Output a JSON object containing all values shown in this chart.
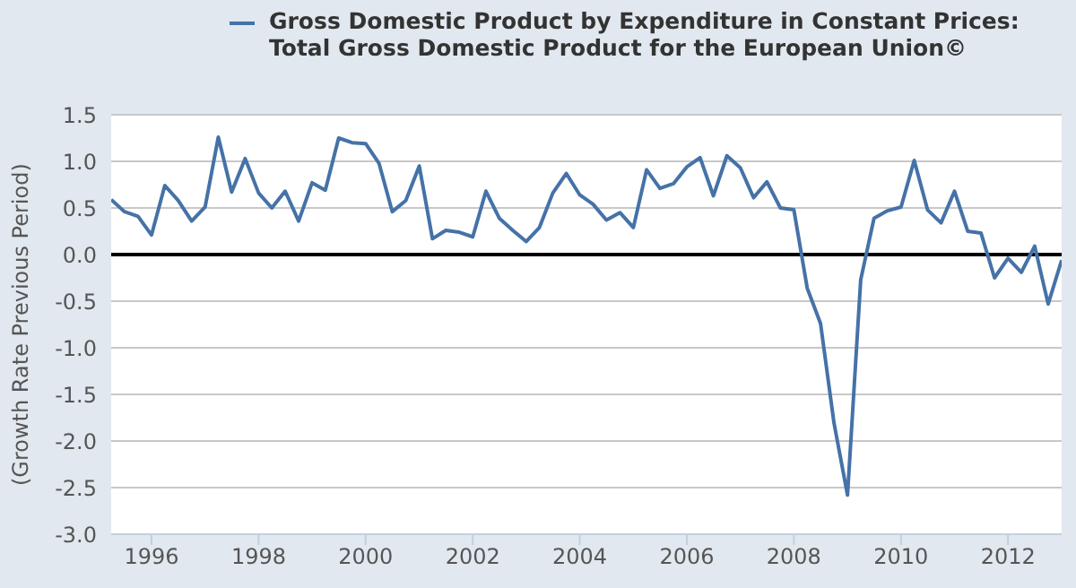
{
  "chart_data": {
    "type": "line",
    "ylabel": "(Growth Rate Previous Period)",
    "x": [
      "1995-04",
      "1995-07",
      "1995-10",
      "1996-01",
      "1996-04",
      "1996-07",
      "1996-10",
      "1997-01",
      "1997-04",
      "1997-07",
      "1997-10",
      "1998-01",
      "1998-04",
      "1998-07",
      "1998-10",
      "1999-01",
      "1999-04",
      "1999-07",
      "1999-10",
      "2000-01",
      "2000-04",
      "2000-07",
      "2000-10",
      "2001-01",
      "2001-04",
      "2001-07",
      "2001-10",
      "2002-01",
      "2002-04",
      "2002-07",
      "2002-10",
      "2003-01",
      "2003-04",
      "2003-07",
      "2003-10",
      "2004-01",
      "2004-04",
      "2004-07",
      "2004-10",
      "2005-01",
      "2005-04",
      "2005-07",
      "2005-10",
      "2006-01",
      "2006-04",
      "2006-07",
      "2006-10",
      "2007-01",
      "2007-04",
      "2007-07",
      "2007-10",
      "2008-01",
      "2008-04",
      "2008-07",
      "2008-10",
      "2009-01",
      "2009-04",
      "2009-07",
      "2009-10",
      "2010-01",
      "2010-04",
      "2010-07",
      "2010-10",
      "2011-01",
      "2011-04",
      "2011-07",
      "2011-10",
      "2012-01",
      "2012-04",
      "2012-07",
      "2012-10",
      "2013-01"
    ],
    "series": [
      {
        "name": "Gross Domestic Product by Expenditure in Constant Prices: Total Gross Domestic Product for the European Union©",
        "color": "#4572a7",
        "values": [
          0.59,
          0.46,
          0.41,
          0.21,
          0.74,
          0.58,
          0.36,
          0.51,
          1.26,
          0.67,
          1.03,
          0.66,
          0.5,
          0.68,
          0.36,
          0.77,
          0.69,
          1.25,
          1.2,
          1.19,
          0.98,
          0.46,
          0.58,
          0.95,
          0.17,
          0.26,
          0.24,
          0.19,
          0.68,
          0.39,
          0.26,
          0.14,
          0.29,
          0.66,
          0.87,
          0.64,
          0.54,
          0.37,
          0.45,
          0.29,
          0.91,
          0.71,
          0.76,
          0.94,
          1.04,
          0.63,
          1.06,
          0.93,
          0.61,
          0.78,
          0.5,
          0.48,
          -0.36,
          -0.74,
          -1.81,
          -2.58,
          -0.27,
          0.39,
          0.47,
          0.51,
          1.01,
          0.48,
          0.34,
          0.68,
          0.25,
          0.23,
          -0.25,
          -0.04,
          -0.19,
          0.09,
          -0.53,
          -0.06
        ]
      }
    ],
    "xlim": [
      "1995-04",
      "2013-01"
    ],
    "xticks": [
      "1996",
      "1998",
      "2000",
      "2002",
      "2004",
      "2006",
      "2008",
      "2010",
      "2012"
    ],
    "ylim": [
      -3.0,
      1.5
    ],
    "yticks": [
      {
        "value": -3.0,
        "label": "-3.0"
      },
      {
        "value": -2.5,
        "label": "-2.5"
      },
      {
        "value": -2.0,
        "label": "-2.0"
      },
      {
        "value": -1.5,
        "label": "-1.5"
      },
      {
        "value": -1.0,
        "label": "-1.0"
      },
      {
        "value": -0.5,
        "label": "-0.5"
      },
      {
        "value": 0.0,
        "label": "0.0"
      },
      {
        "value": 0.5,
        "label": "0.5"
      },
      {
        "value": 1.0,
        "label": "1.0"
      },
      {
        "value": 1.5,
        "label": "1.5"
      }
    ],
    "ref_lines": [
      {
        "axis": "y",
        "value": 0,
        "color": "#000000"
      }
    ],
    "grid": "y",
    "legend": "top",
    "marker": "none",
    "line_style": "solid"
  }
}
